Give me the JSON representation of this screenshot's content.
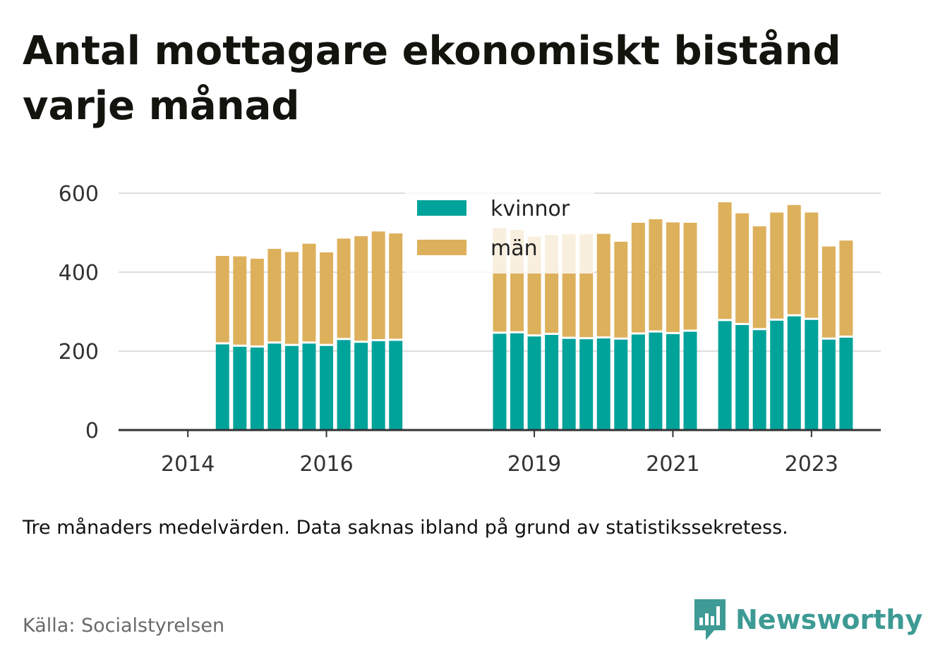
{
  "title": "Antal mottagare ekonomiskt bistånd varje månad",
  "note": "Tre månaders medelvärden. Data saknas ibland på grund av statistikssekretess.",
  "source": "Källa: Socialstyrelsen",
  "brand": "Newsworthy",
  "colors": {
    "kvinnor": "#00a39a",
    "man": "#ddb05c",
    "grid": "#dddddd",
    "axis": "#333333",
    "brand": "#3d9a94"
  },
  "chart_data": {
    "type": "bar",
    "stacked": true,
    "ylim": [
      0,
      600
    ],
    "y_ticks": [
      0,
      200,
      400,
      600
    ],
    "x_range": [
      2013.0,
      2024.0
    ],
    "x_ticks": [
      2014,
      2016,
      2019,
      2021,
      2023
    ],
    "legend": {
      "position": "top-center",
      "entries": [
        "kvinnor",
        "män"
      ]
    },
    "grid": true,
    "x": [
      2014.5,
      2014.75,
      2015.0,
      2015.25,
      2015.5,
      2015.75,
      2016.0,
      2016.25,
      2016.5,
      2016.75,
      2017.0,
      2017.25,
      2018.5,
      2018.75,
      2019.0,
      2019.25,
      2019.5,
      2019.75,
      2020.0,
      2020.25,
      2020.5,
      2020.75,
      2021.0,
      2021.25,
      2021.75,
      2022.0,
      2022.25,
      2022.5,
      2022.75,
      2023.0,
      2023.25,
      2023.5
    ],
    "series": [
      {
        "name": "kvinnor",
        "values": [
          217,
          211,
          209,
          219,
          213,
          219,
          213,
          228,
          221,
          225,
          226,
          0,
          244,
          245,
          237,
          241,
          231,
          230,
          232,
          229,
          242,
          247,
          243,
          249,
          276,
          266,
          253,
          277,
          288,
          279,
          229,
          234
        ]
      },
      {
        "name": "män",
        "values": [
          224,
          229,
          225,
          240,
          238,
          253,
          237,
          257,
          270,
          278,
          272,
          0,
          268,
          262,
          253,
          253,
          265,
          266,
          265,
          248,
          283,
          287,
          283,
          276,
          301,
          283,
          263,
          274,
          282,
          272,
          236,
          246
        ]
      }
    ]
  }
}
